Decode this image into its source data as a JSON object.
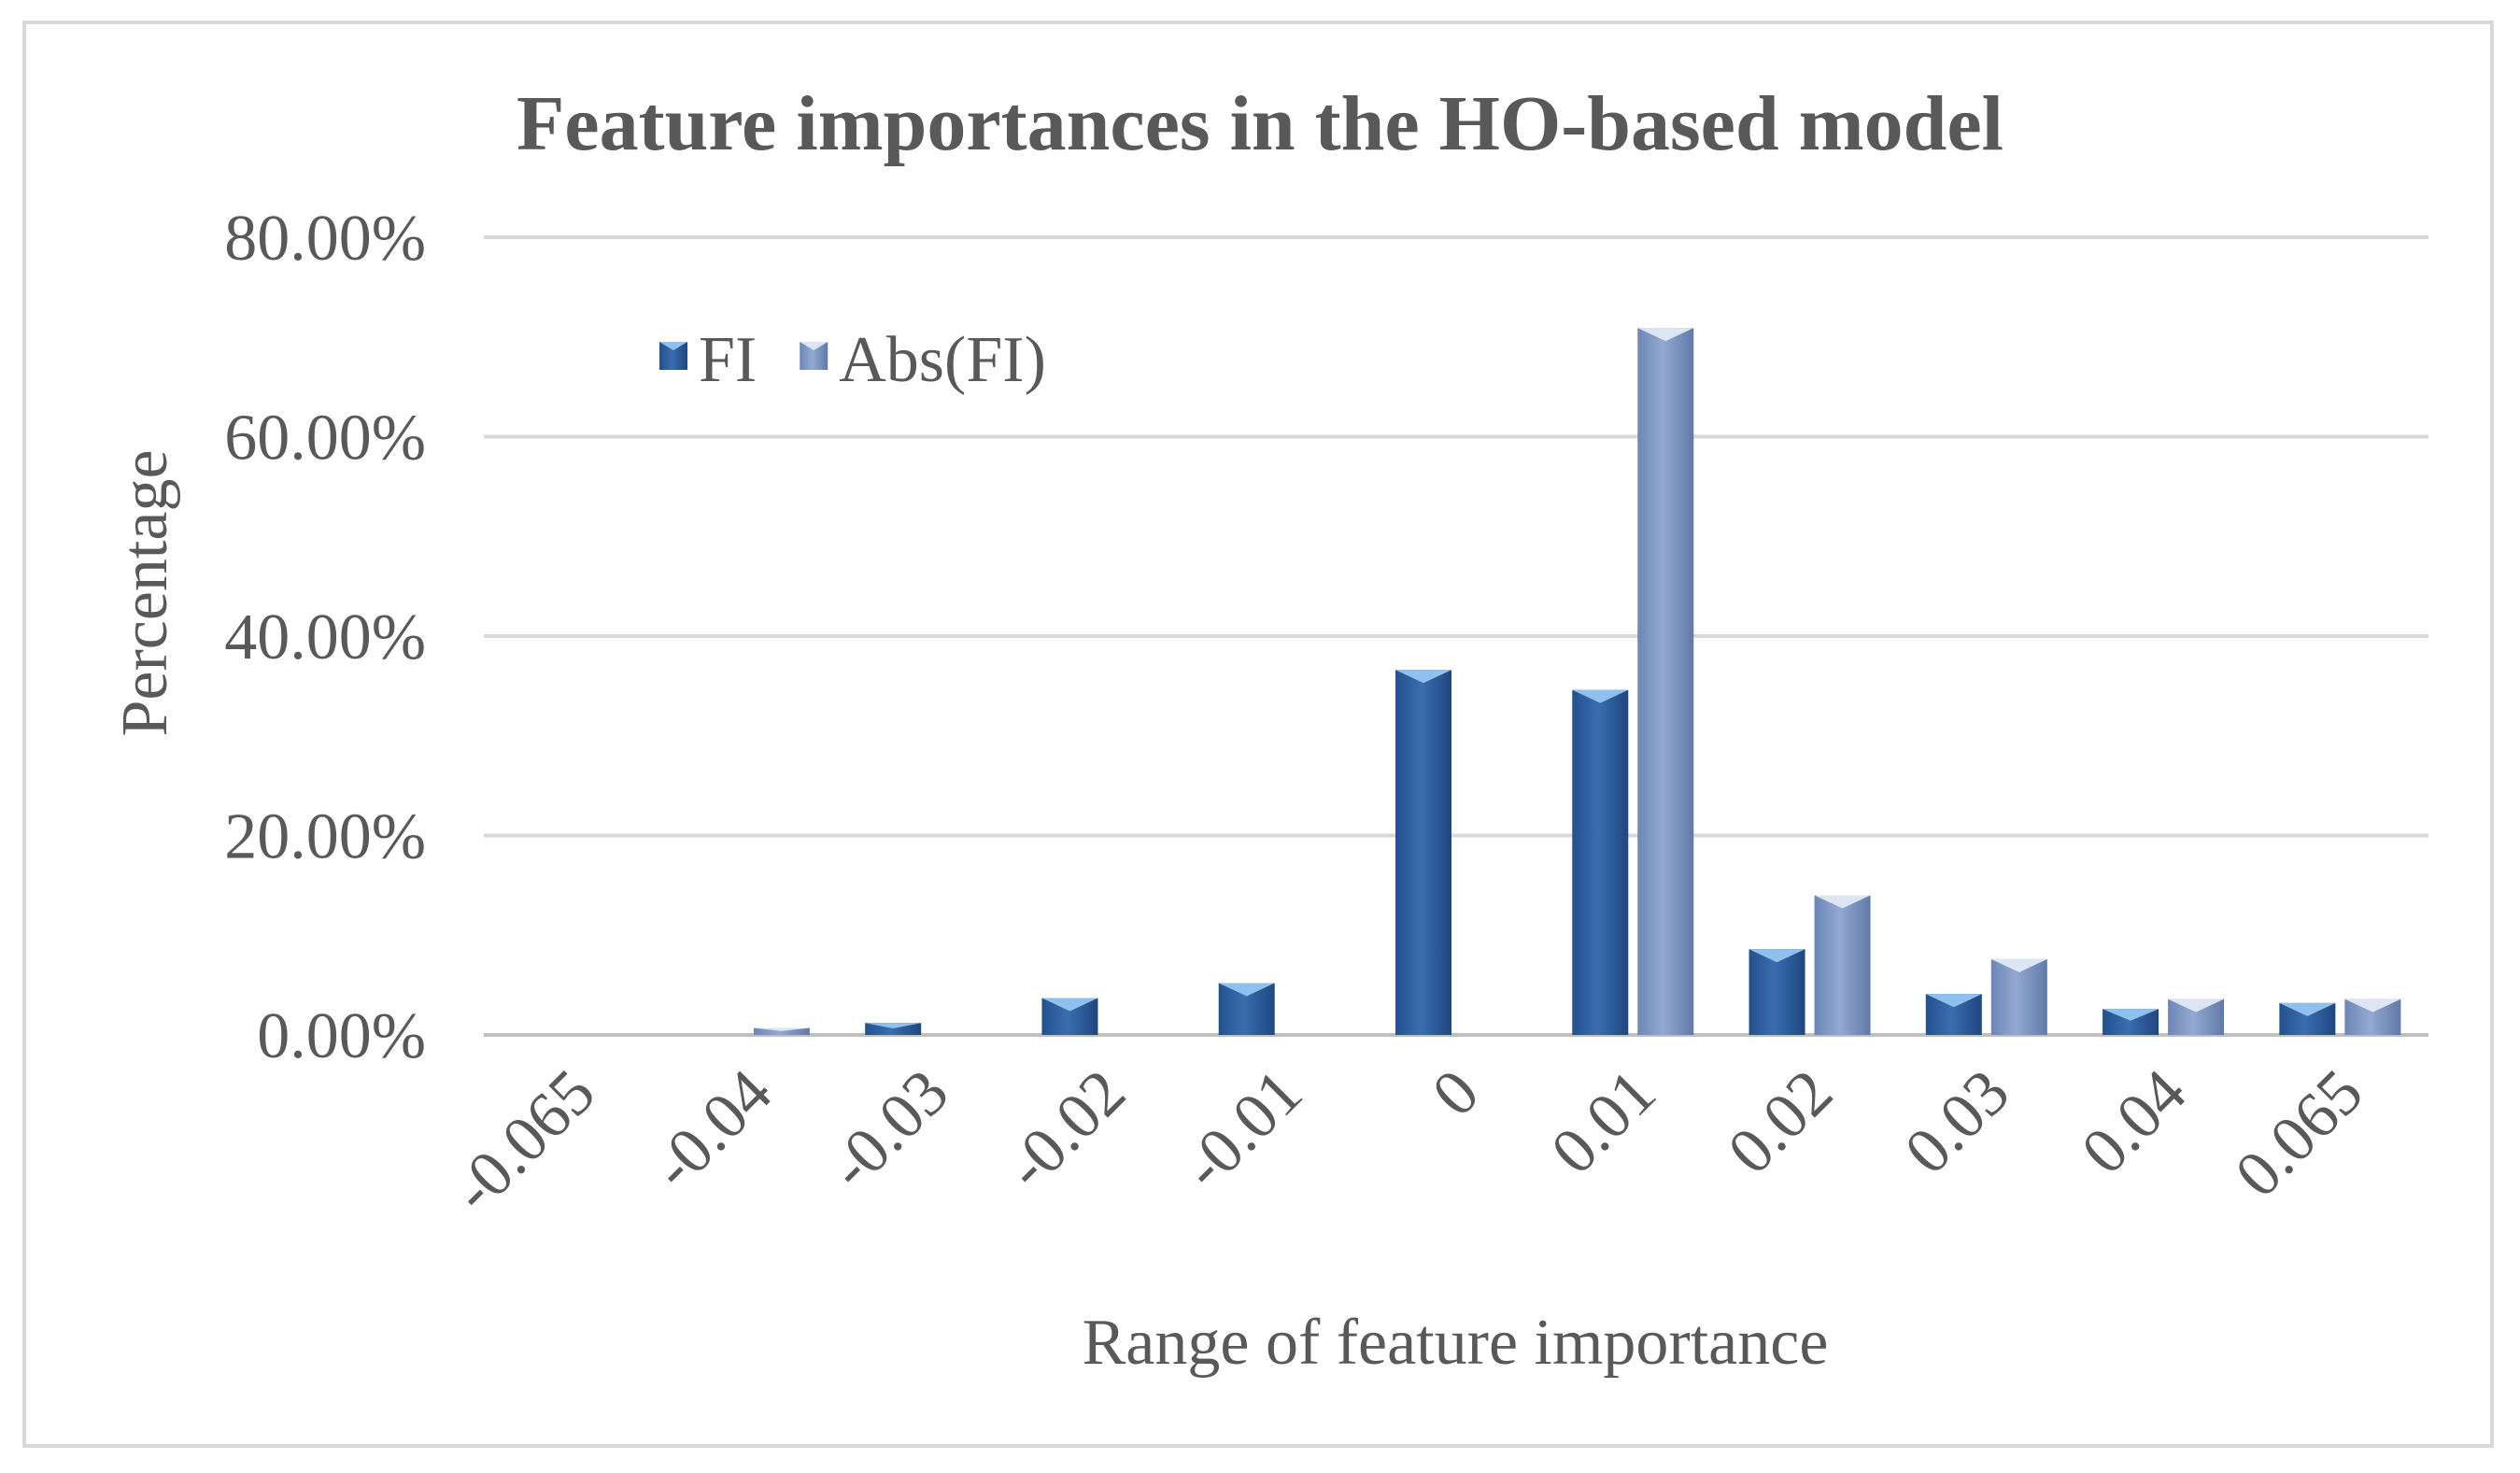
{
  "chart_data": {
    "type": "bar",
    "title": "Feature importances in the HO-based model",
    "xlabel": "Range of feature importance",
    "ylabel": "Percentage",
    "categories": [
      "-0.065",
      "-0.04",
      "-0.03",
      "-0.02",
      "-0.01",
      "0",
      "0.01",
      "0.02",
      "0.03",
      "0.04",
      "0.065"
    ],
    "series": [
      {
        "name": "FI",
        "color": "#2e5c99",
        "values": [
          0.0,
          0.0,
          1.2,
          3.7,
          5.2,
          36.6,
          34.6,
          8.6,
          4.1,
          2.6,
          3.2
        ]
      },
      {
        "name": "Abs(FI)",
        "color": "#7f97c3",
        "values": [
          0.0,
          0.7,
          0.0,
          0.0,
          0.0,
          0.0,
          70.9,
          14.0,
          7.6,
          3.6,
          3.6
        ]
      }
    ],
    "yticks": [
      "0.00%",
      "20.00%",
      "40.00%",
      "60.00%",
      "80.00%"
    ],
    "ylim": [
      0,
      80
    ],
    "grid": true,
    "legend_position": "top-left"
  }
}
